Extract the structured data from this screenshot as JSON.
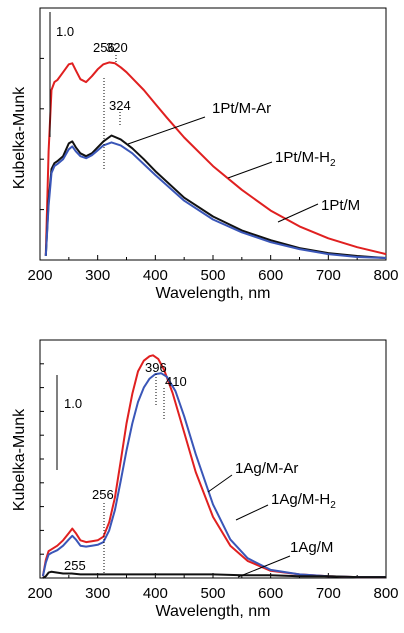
{
  "chart_data": [
    {
      "type": "line",
      "xlabel": "Wavelength, nm",
      "ylabel": "Kubelka-Munk",
      "xlim": [
        200,
        800
      ],
      "ylim": [
        0,
        2.55
      ],
      "xticks": [
        "200",
        "300",
        "400",
        "500",
        "600",
        "700",
        "800"
      ],
      "scale_bar_label": "1.0",
      "peak_labels": [
        "256",
        "320",
        "324"
      ],
      "series": [
        {
          "name": "1Pt/M-Ar",
          "color": "#e02020",
          "x": [
            210,
            215,
            220,
            225,
            230,
            240,
            250,
            256,
            262,
            270,
            280,
            290,
            300,
            310,
            320,
            330,
            340,
            350,
            360,
            380,
            400,
            420,
            450,
            500,
            550,
            600,
            650,
            700,
            750,
            800
          ],
          "y": [
            0.05,
            1.1,
            1.72,
            1.8,
            1.82,
            1.9,
            1.98,
            1.99,
            1.92,
            1.83,
            1.8,
            1.86,
            1.93,
            1.98,
            2.0,
            1.99,
            1.95,
            1.9,
            1.84,
            1.72,
            1.58,
            1.44,
            1.24,
            0.95,
            0.71,
            0.5,
            0.34,
            0.22,
            0.13,
            0.06
          ]
        },
        {
          "name": "1Pt/M-H2",
          "color": "#111111",
          "x": [
            210,
            215,
            220,
            225,
            230,
            240,
            250,
            256,
            262,
            270,
            280,
            290,
            300,
            310,
            324,
            340,
            360,
            380,
            400,
            450,
            500,
            550,
            600,
            650,
            700,
            750,
            800
          ],
          "y": [
            0.04,
            0.6,
            0.92,
            0.98,
            1.0,
            1.05,
            1.18,
            1.2,
            1.14,
            1.08,
            1.05,
            1.08,
            1.14,
            1.2,
            1.26,
            1.22,
            1.13,
            1.02,
            0.9,
            0.63,
            0.44,
            0.3,
            0.2,
            0.12,
            0.07,
            0.04,
            0.02
          ]
        },
        {
          "name": "1Pt/M",
          "color": "#3a56b8",
          "x": [
            210,
            215,
            220,
            225,
            230,
            240,
            250,
            256,
            262,
            270,
            280,
            290,
            300,
            310,
            324,
            340,
            360,
            380,
            400,
            450,
            500,
            550,
            600,
            650,
            700,
            750,
            800
          ],
          "y": [
            0.04,
            0.55,
            0.88,
            0.95,
            0.97,
            1.02,
            1.12,
            1.15,
            1.1,
            1.05,
            1.03,
            1.06,
            1.11,
            1.16,
            1.19,
            1.16,
            1.08,
            0.97,
            0.86,
            0.6,
            0.41,
            0.28,
            0.18,
            0.11,
            0.06,
            0.03,
            0.02
          ]
        }
      ]
    },
    {
      "type": "line",
      "xlabel": "Wavelength, nm",
      "ylabel": "Kubelka-Munk",
      "xlim": [
        200,
        800
      ],
      "ylim": [
        0,
        2.65
      ],
      "xticks": [
        "200",
        "300",
        "400",
        "500",
        "600",
        "700",
        "800"
      ],
      "scale_bar_label": "1.0",
      "peak_labels": [
        "396",
        "410",
        "256",
        "255"
      ],
      "series": [
        {
          "name": "1Ag/M-Ar",
          "color": "#e02020",
          "x": [
            205,
            210,
            215,
            220,
            230,
            240,
            250,
            256,
            262,
            270,
            280,
            290,
            300,
            310,
            320,
            330,
            340,
            350,
            360,
            370,
            380,
            390,
            396,
            405,
            415,
            430,
            450,
            470,
            500,
            530,
            560,
            600,
            650,
            700,
            750,
            800
          ],
          "y": [
            0.02,
            0.2,
            0.3,
            0.32,
            0.36,
            0.42,
            0.5,
            0.55,
            0.5,
            0.42,
            0.4,
            0.41,
            0.42,
            0.46,
            0.62,
            0.9,
            1.3,
            1.72,
            2.05,
            2.3,
            2.42,
            2.47,
            2.48,
            2.44,
            2.32,
            2.06,
            1.62,
            1.18,
            0.68,
            0.36,
            0.19,
            0.08,
            0.04,
            0.02,
            0.01,
            0.01
          ]
        },
        {
          "name": "1Ag/M-H2",
          "color": "#3a56b8",
          "x": [
            205,
            210,
            215,
            220,
            230,
            240,
            250,
            256,
            262,
            270,
            280,
            290,
            300,
            310,
            320,
            330,
            340,
            350,
            360,
            370,
            380,
            390,
            400,
            410,
            420,
            435,
            450,
            470,
            500,
            530,
            560,
            600,
            650,
            700,
            750,
            800
          ],
          "y": [
            0.02,
            0.17,
            0.26,
            0.28,
            0.31,
            0.36,
            0.43,
            0.47,
            0.43,
            0.36,
            0.35,
            0.36,
            0.37,
            0.4,
            0.53,
            0.76,
            1.08,
            1.42,
            1.72,
            1.96,
            2.12,
            2.22,
            2.27,
            2.28,
            2.24,
            2.08,
            1.8,
            1.38,
            0.82,
            0.43,
            0.22,
            0.09,
            0.04,
            0.02,
            0.01,
            0.01
          ]
        },
        {
          "name": "1Ag/M",
          "color": "#111111",
          "x": [
            205,
            210,
            215,
            220,
            230,
            240,
            255,
            270,
            300,
            350,
            400,
            450,
            500,
            550,
            600,
            650,
            700,
            750,
            800
          ],
          "y": [
            0.0,
            0.02,
            0.06,
            0.07,
            0.06,
            0.05,
            0.05,
            0.04,
            0.04,
            0.04,
            0.04,
            0.04,
            0.04,
            0.03,
            0.03,
            0.02,
            0.02,
            0.01,
            0.01
          ]
        }
      ]
    }
  ]
}
